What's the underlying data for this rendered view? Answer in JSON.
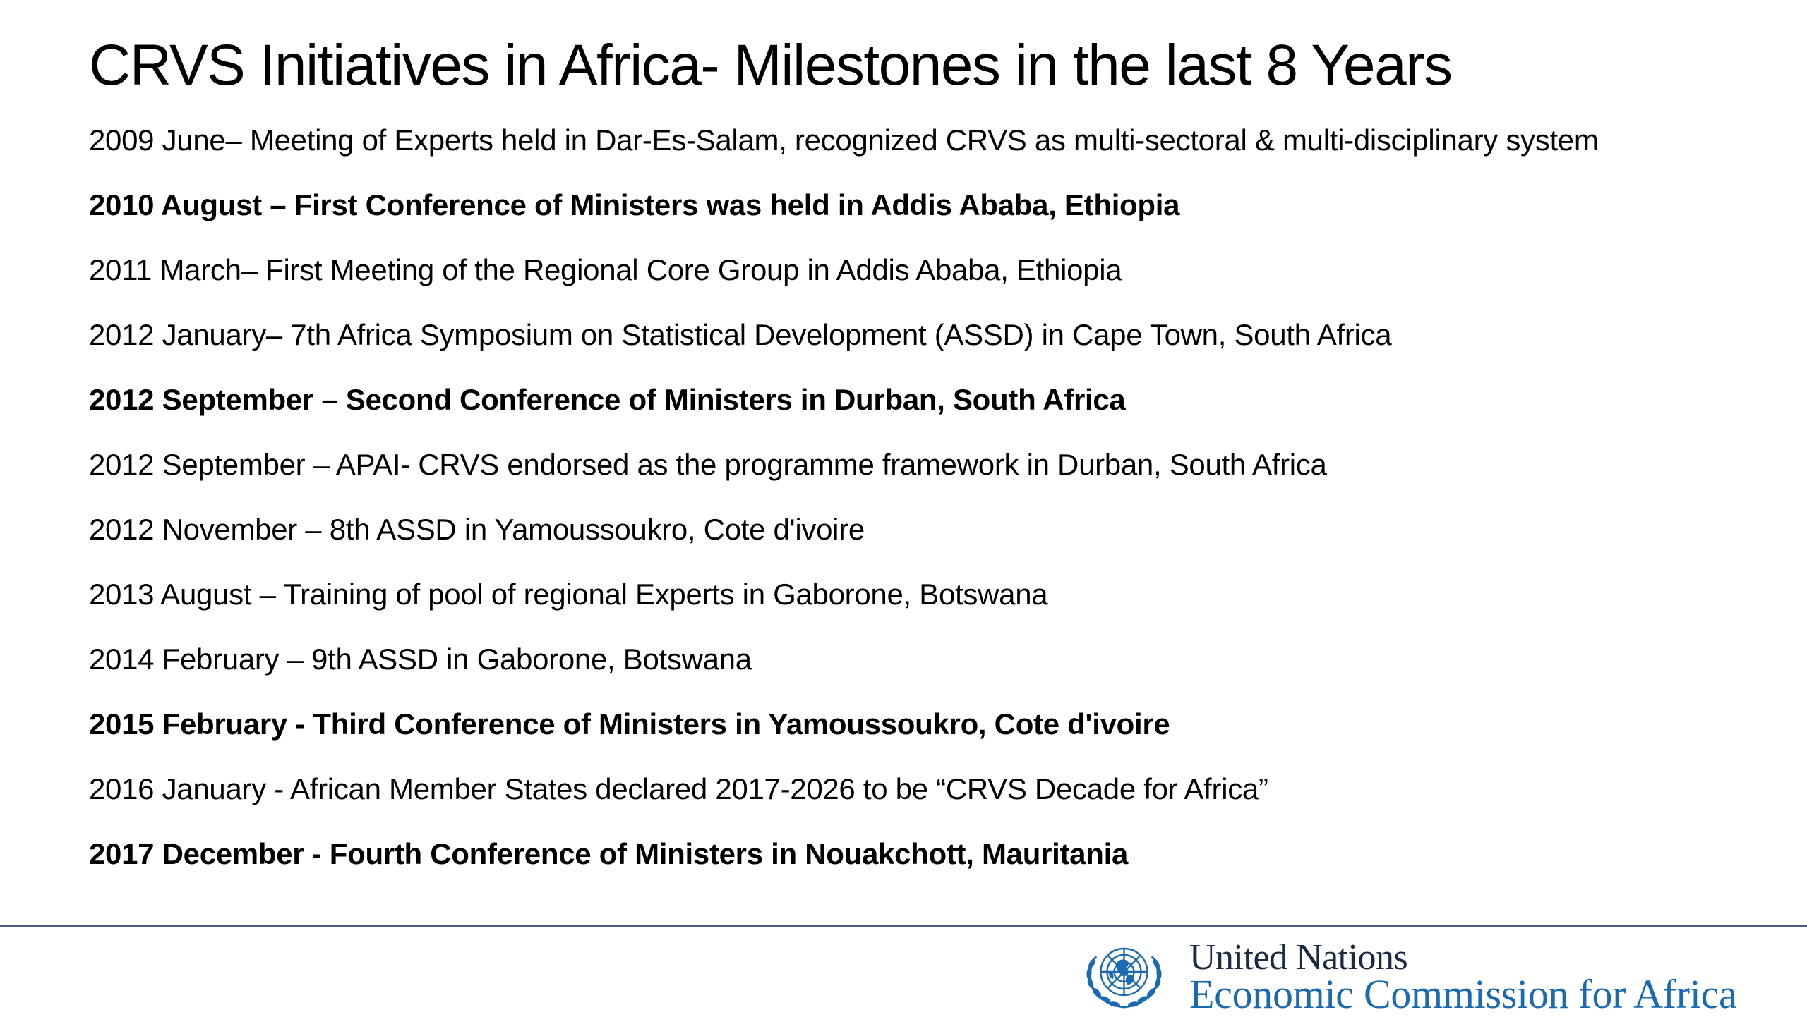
{
  "slide": {
    "title": "CRVS Initiatives in Africa- Milestones in the last 8 Years",
    "milestones": [
      {
        "text": "2009 June– Meeting of Experts held in Dar-Es-Salam, recognized CRVS as multi-sectoral & multi-disciplinary system",
        "bold": false
      },
      {
        "text": "2010 August – First Conference of Ministers was held in Addis Ababa, Ethiopia",
        "bold": true
      },
      {
        "text": "2011 March– First Meeting of the Regional Core Group in Addis Ababa, Ethiopia",
        "bold": false
      },
      {
        "text": "2012 January– 7th Africa Symposium on Statistical Development (ASSD) in Cape Town, South Africa",
        "bold": false
      },
      {
        "text": "2012 September – Second Conference of Ministers in Durban, South Africa",
        "bold": true
      },
      {
        "text": "2012 September – APAI- CRVS endorsed as the programme framework in Durban, South Africa",
        "bold": false
      },
      {
        "text": "2012 November – 8th ASSD in Yamoussoukro, Cote d'ivoire",
        "bold": false
      },
      {
        "text": "2013 August – Training of pool of regional Experts in Gaborone, Botswana",
        "bold": false
      },
      {
        "text": "2014 February – 9th ASSD in Gaborone, Botswana",
        "bold": false
      },
      {
        "text": "2015 February -  Third Conference of Ministers in Yamoussoukro, Cote d'ivoire",
        "bold": true
      },
      {
        "text": "2016 January - African Member States declared 2017-2026 to be “CRVS Decade for Africa”",
        "bold": false
      },
      {
        "text": "2017 December - Fourth Conference of Ministers in Nouakchott, Mauritania",
        "bold": true
      }
    ]
  },
  "footer": {
    "org_name": "United Nations",
    "org_division": "Economic Commission for Africa",
    "emblem_icon": "un-emblem-icon",
    "divider_color": "#4a5d7a",
    "org_name_color": "#1b2a44",
    "org_division_color": "#1a6ab3",
    "emblem_color": "#1a6ab3"
  }
}
